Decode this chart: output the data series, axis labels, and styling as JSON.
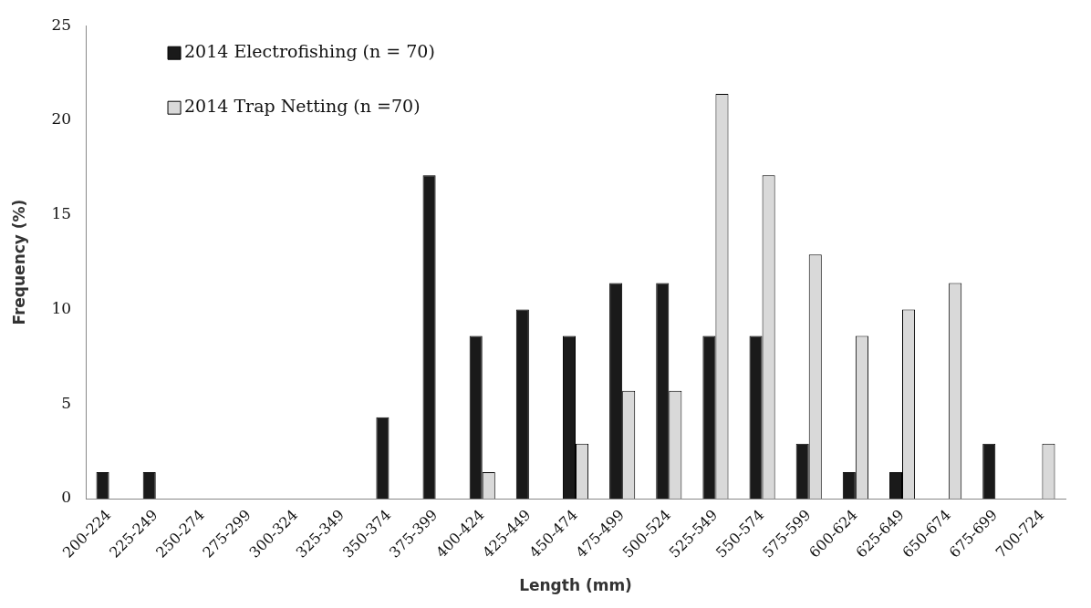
{
  "chart_data": {
    "type": "bar",
    "xlabel": "Length (mm)",
    "ylabel": "Frequency (%)",
    "categories": [
      "200-224",
      "225-249",
      "250-274",
      "275-299",
      "300-324",
      "325-349",
      "350-374",
      "375-399",
      "400-424",
      "425-449",
      "450-474",
      "475-499",
      "500-524",
      "525-549",
      "550-574",
      "575-599",
      "600-624",
      "625-649",
      "650-674",
      "675-699",
      "700-724"
    ],
    "series": [
      {
        "name": "2014 Electrofishing (n = 70)",
        "color": "#1a1a1a",
        "values": [
          1.4,
          1.4,
          0,
          0,
          0,
          0,
          4.3,
          17.1,
          8.6,
          10,
          8.6,
          11.4,
          11.4,
          8.6,
          8.6,
          2.9,
          1.4,
          1.4,
          0,
          2.9,
          0
        ]
      },
      {
        "name": "2014 Trap Netting (n =70)",
        "color": "#d9d9d9",
        "values": [
          0,
          0,
          0,
          0,
          0,
          0,
          0,
          0,
          1.4,
          0,
          2.9,
          5.7,
          5.7,
          21.4,
          17.1,
          12.9,
          8.6,
          10,
          11.4,
          0,
          2.9
        ]
      }
    ],
    "ylim": [
      0,
      25
    ],
    "yticks": [
      0,
      5,
      10,
      15,
      20,
      25
    ],
    "grid": false,
    "legend": "top left"
  }
}
